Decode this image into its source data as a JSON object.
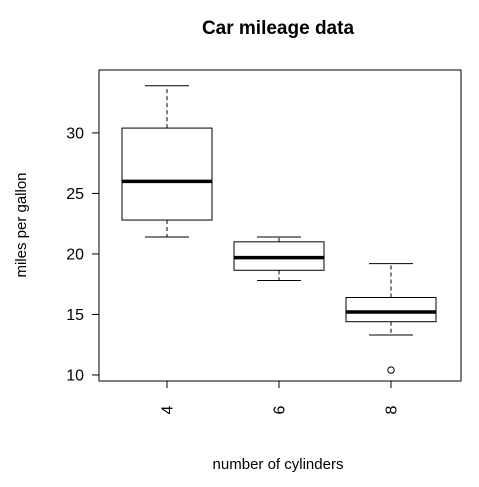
{
  "chart_data": {
    "type": "box",
    "title": "Car mileage data",
    "xlabel": "number of cylinders",
    "ylabel": "miles per gallon",
    "categories": [
      "4",
      "6",
      "8"
    ],
    "ylim": [
      9.5,
      35.2
    ],
    "yticks": [
      10,
      15,
      20,
      25,
      30
    ],
    "ytick_labels": [
      "10",
      "15",
      "20",
      "25",
      "30"
    ],
    "grid": false,
    "boxes": [
      {
        "category": "4",
        "whisker_low": 21.4,
        "q1": 22.8,
        "median": 26.0,
        "q3": 30.4,
        "whisker_high": 33.9,
        "outliers": []
      },
      {
        "category": "6",
        "whisker_low": 17.8,
        "q1": 18.65,
        "median": 19.7,
        "q3": 21.0,
        "whisker_high": 21.4,
        "outliers": []
      },
      {
        "category": "8",
        "whisker_low": 13.3,
        "q1": 14.4,
        "median": 15.2,
        "q3": 16.4,
        "whisker_high": 19.2,
        "outliers": [
          10.4
        ]
      }
    ]
  }
}
